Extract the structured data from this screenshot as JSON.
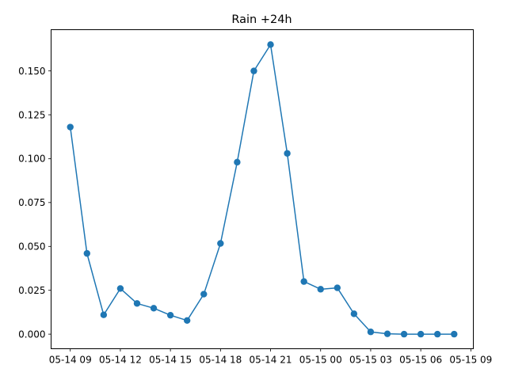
{
  "chart_data": {
    "type": "line",
    "title": "Rain +24h",
    "xlabel": "",
    "ylabel": "",
    "grid": false,
    "legend": "none",
    "color": "#1f77b4",
    "marker": "circle",
    "x_ticks": [
      "05-14 09",
      "05-14 12",
      "05-14 15",
      "05-14 18",
      "05-14 21",
      "05-15 00",
      "05-15 03",
      "05-15 06",
      "05-15 09"
    ],
    "x_tick_hours": [
      0,
      3,
      6,
      9,
      12,
      15,
      18,
      21,
      24
    ],
    "xlim_hours": [
      -1.15,
      24.15
    ],
    "y_ticks": [
      "0.000",
      "0.025",
      "0.050",
      "0.075",
      "0.100",
      "0.125",
      "0.150"
    ],
    "y_tick_values": [
      0,
      0.025,
      0.05,
      0.075,
      0.1,
      0.125,
      0.15
    ],
    "ylim": [
      -0.0083,
      0.1735
    ],
    "series": [
      {
        "hours": [
          0,
          1,
          2,
          3,
          4,
          5,
          6,
          7,
          8,
          9,
          10,
          11,
          12,
          13,
          14,
          15,
          16,
          17,
          18,
          19,
          20,
          21,
          22,
          23
        ],
        "values": [
          0.118,
          0.046,
          0.011,
          0.026,
          0.0175,
          0.0148,
          0.0108,
          0.0078,
          0.0228,
          0.0517,
          0.098,
          0.15,
          0.165,
          0.103,
          0.03,
          0.0256,
          0.0264,
          0.0116,
          0.0013,
          0.0002,
          0.0,
          0.0,
          0.0,
          0.0
        ]
      }
    ]
  }
}
